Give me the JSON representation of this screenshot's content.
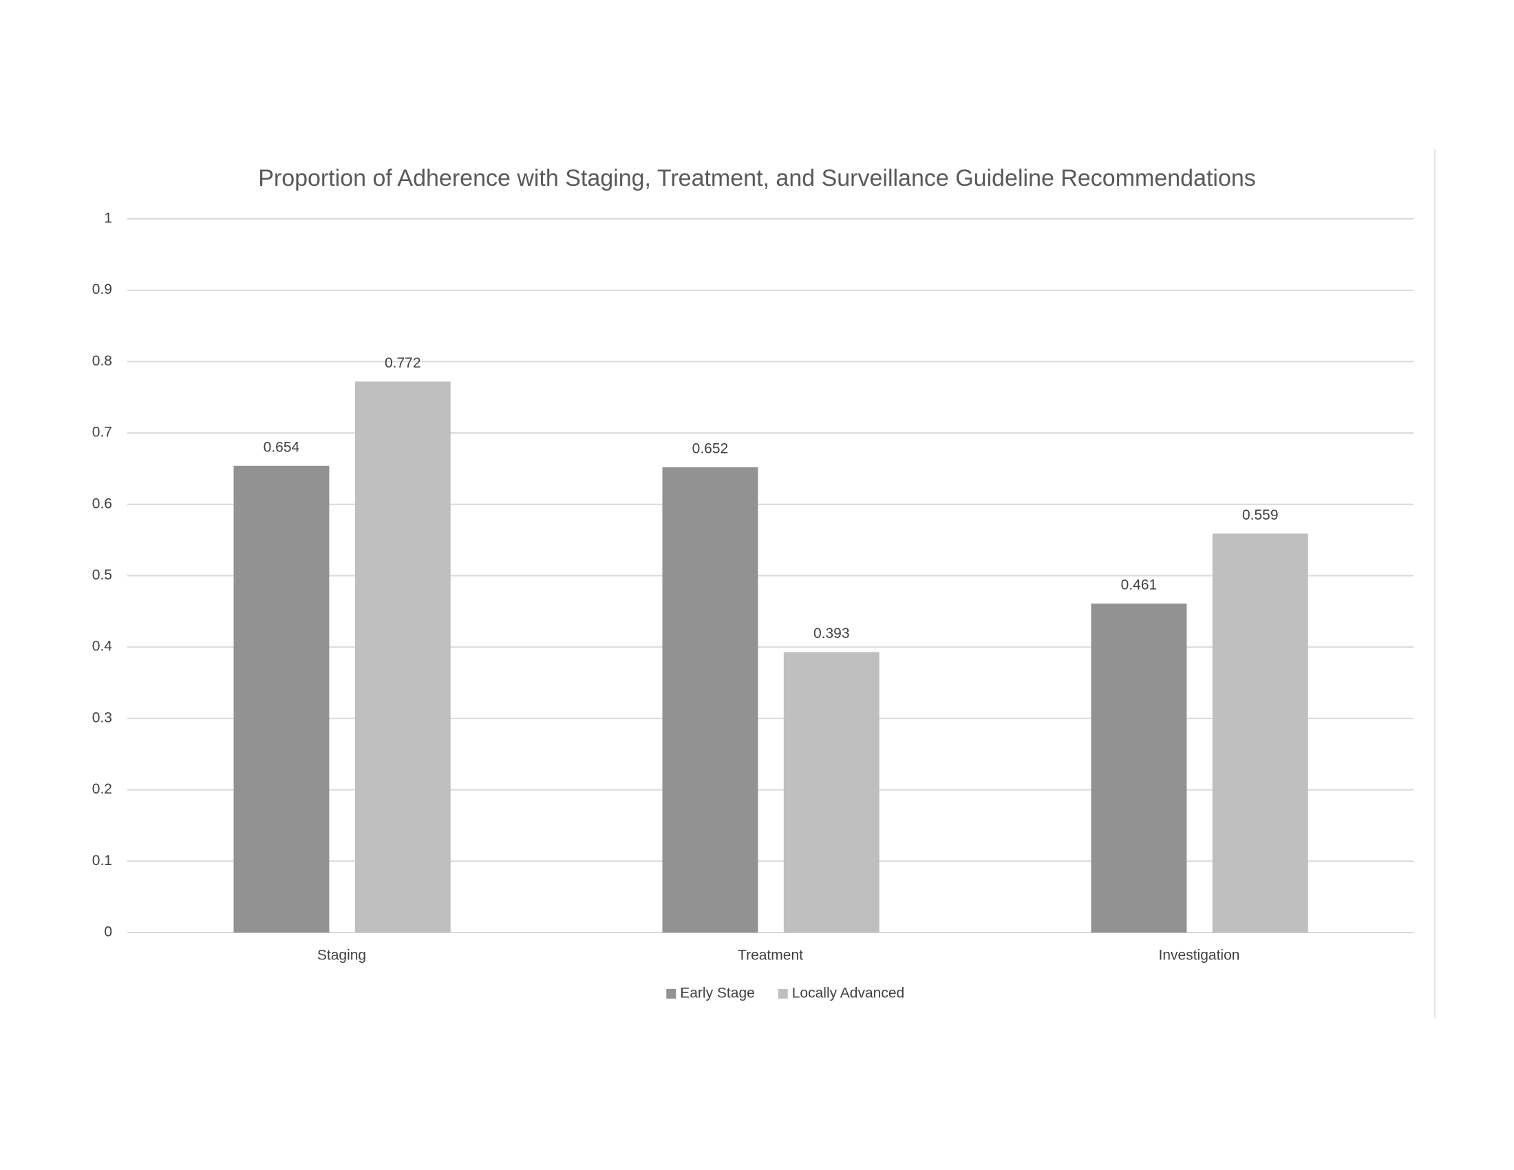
{
  "chart_data": {
    "type": "bar",
    "title": "Proportion of Adherence with Staging, Treatment, and Surveillance Guideline Recommendations",
    "categories": [
      "Staging",
      "Treatment",
      "Investigation"
    ],
    "series": [
      {
        "name": "Early Stage",
        "color": "#929292",
        "values": [
          0.654,
          0.652,
          0.461
        ]
      },
      {
        "name": "Locally Advanced",
        "color": "#bfbfbf",
        "values": [
          0.772,
          0.393,
          0.559
        ]
      }
    ],
    "ylim": [
      0,
      1
    ],
    "yticks": [
      0,
      0.1,
      0.2,
      0.3,
      0.4,
      0.5,
      0.6,
      0.7,
      0.8,
      0.9,
      1
    ],
    "grid": true,
    "legend": "bottom",
    "data_labels": true
  }
}
